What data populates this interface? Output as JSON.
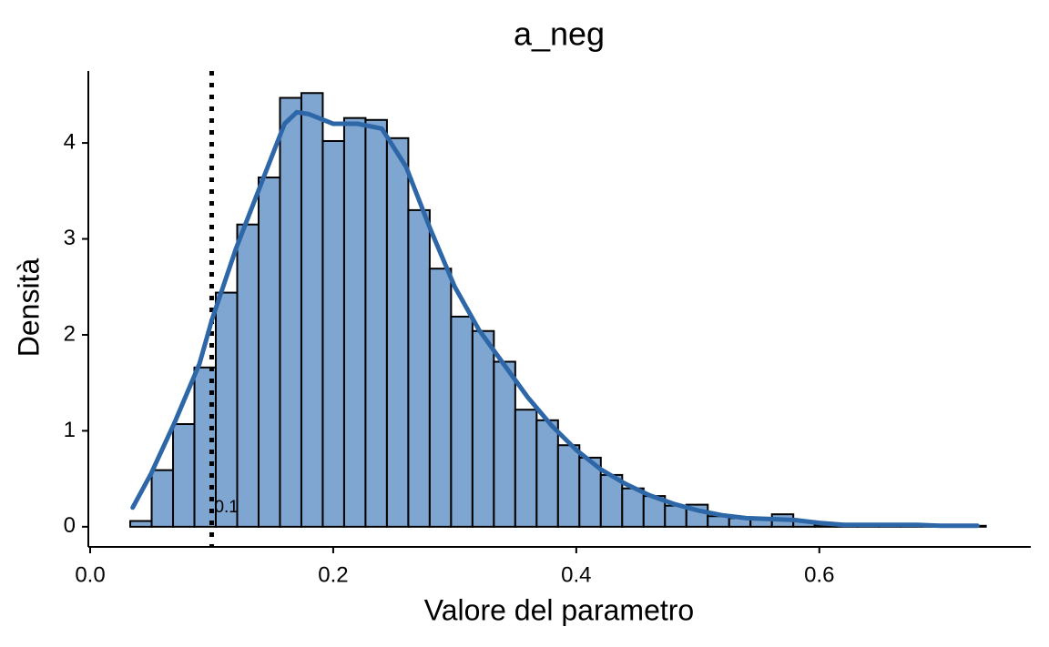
{
  "chart_data": {
    "type": "histogram",
    "title": "a_neg",
    "x_label": "Valore del parametro",
    "y_label": "Densità",
    "bins": [
      0.033,
      0.0506,
      0.0682,
      0.0858,
      0.1034,
      0.121,
      0.1386,
      0.1562,
      0.1738,
      0.1914,
      0.209,
      0.2266,
      0.2442,
      0.2618,
      0.2794,
      0.297,
      0.3146,
      0.3322,
      0.3498,
      0.3674,
      0.385,
      0.4026,
      0.4202,
      0.4378,
      0.4554,
      0.473,
      0.4906,
      0.5082,
      0.5258,
      0.5434,
      0.561,
      0.5786,
      0.5962,
      0.6138,
      0.6314,
      0.649,
      0.6666,
      0.6842,
      0.7018,
      0.7194,
      0.737
    ],
    "counts": [
      0.06,
      0.59,
      1.07,
      1.66,
      2.44,
      3.15,
      3.64,
      4.47,
      4.52,
      4.02,
      4.26,
      4.24,
      4.05,
      3.3,
      2.69,
      2.19,
      2.04,
      1.72,
      1.22,
      1.11,
      0.85,
      0.72,
      0.54,
      0.4,
      0.32,
      0.22,
      0.23,
      0.11,
      0.09,
      0.09,
      0.13,
      0.06,
      0.02,
      0.01,
      0.01,
      0.01,
      0.02,
      0.01,
      0,
      0.01
    ],
    "color": "#7fa6d0",
    "edge_color": "#000000",
    "density": {
      "color": "#2e67a8",
      "x": [
        0.035,
        0.05,
        0.07,
        0.09,
        0.1,
        0.12,
        0.14,
        0.16,
        0.17,
        0.18,
        0.2,
        0.22,
        0.24,
        0.26,
        0.28,
        0.3,
        0.32,
        0.34,
        0.36,
        0.38,
        0.4,
        0.42,
        0.44,
        0.46,
        0.48,
        0.5,
        0.52,
        0.54,
        0.56,
        0.58,
        0.6,
        0.62,
        0.65,
        0.68,
        0.7,
        0.73
      ],
      "y": [
        0.2,
        0.55,
        1.1,
        1.7,
        2.15,
        2.9,
        3.55,
        4.2,
        4.32,
        4.3,
        4.2,
        4.2,
        4.15,
        3.75,
        3.1,
        2.5,
        2.05,
        1.7,
        1.35,
        1.05,
        0.8,
        0.6,
        0.45,
        0.33,
        0.24,
        0.17,
        0.12,
        0.09,
        0.08,
        0.07,
        0.04,
        0.02,
        0.02,
        0.02,
        0.01,
        0.01
      ]
    },
    "vline": {
      "value": 0.1,
      "label": "0.1"
    },
    "xlim": [
      -0.0015,
      0.774
    ],
    "ylim": [
      -0.21,
      4.75
    ],
    "xticks": [
      {
        "value": 0,
        "label": "0.0"
      },
      0.2,
      0.4,
      0.6
    ],
    "yticks": [
      0,
      1,
      2,
      3,
      4
    ]
  }
}
